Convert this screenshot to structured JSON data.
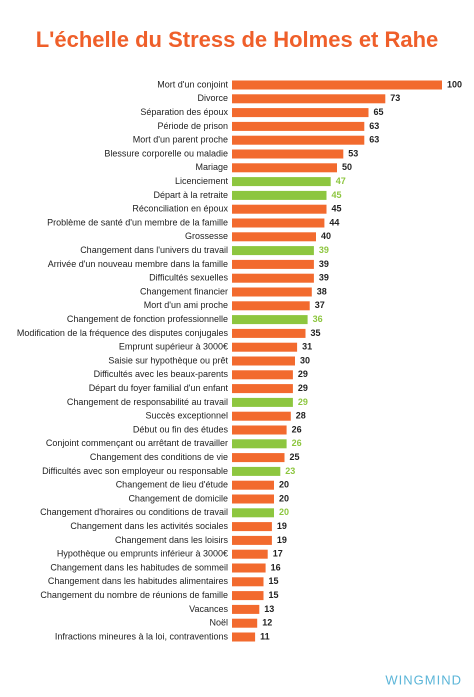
{
  "chart_data": {
    "type": "hbar",
    "title": "L'échelle du Stress de Holmes et Rahe",
    "categories": [
      "Mort d'un conjoint",
      "Divorce",
      "Séparation des époux",
      "Période de prison",
      "Mort d'un parent proche",
      "Blessure corporelle ou maladie",
      "Mariage",
      "Licenciement",
      "Départ à la retraite",
      "Réconciliation en époux",
      "Problème de santé d'un membre de la famille",
      "Grossesse",
      "Changement dans l'univers du travail",
      "Arrivée d'un nouveau membre dans la famille",
      "Difficultés sexuelles",
      "Changement financier",
      "Mort d'un ami proche",
      "Changement de fonction professionnelle",
      "Modification de la fréquence des disputes conjugales",
      "Emprunt supérieur à 3000€",
      "Saisie sur hypothèque ou prêt",
      "Difficultés avec les beaux-parents",
      "Départ du foyer familial d'un enfant",
      "Changement de responsabilité au travail",
      "Succès exceptionnel",
      "Début ou fin des études",
      "Conjoint commençant ou arrêtant de travailler",
      "Changement des conditions de vie",
      "Difficultés avec son employeur ou responsable",
      "Changement de lieu d'étude",
      "Changement de domicile",
      "Changement d'horaires ou conditions de travail",
      "Changement dans les activités sociales",
      "Changement dans les loisirs",
      "Hypothèque ou emprunts inférieur à 3000€",
      "Changement dans les habitudes de sommeil",
      "Changement dans les habitudes alimentaires",
      "Changement du nombre de réunions de famille",
      "Vacances",
      "Noël",
      "Infractions mineures à la loi, contraventions"
    ],
    "values": [
      100,
      73,
      65,
      63,
      63,
      53,
      50,
      47,
      45,
      45,
      44,
      40,
      39,
      39,
      39,
      38,
      37,
      36,
      35,
      31,
      30,
      29,
      29,
      29,
      28,
      26,
      26,
      25,
      23,
      20,
      20,
      20,
      19,
      19,
      17,
      16,
      15,
      15,
      13,
      12,
      11
    ],
    "colors": [
      "#f26a2e",
      "#f26a2e",
      "#f26a2e",
      "#f26a2e",
      "#f26a2e",
      "#f26a2e",
      "#f26a2e",
      "#8dc63f",
      "#8dc63f",
      "#f26a2e",
      "#f26a2e",
      "#f26a2e",
      "#8dc63f",
      "#f26a2e",
      "#f26a2e",
      "#f26a2e",
      "#f26a2e",
      "#8dc63f",
      "#f26a2e",
      "#f26a2e",
      "#f26a2e",
      "#f26a2e",
      "#f26a2e",
      "#8dc63f",
      "#f26a2e",
      "#f26a2e",
      "#8dc63f",
      "#f26a2e",
      "#8dc63f",
      "#f26a2e",
      "#f26a2e",
      "#8dc63f",
      "#f26a2e",
      "#f26a2e",
      "#f26a2e",
      "#f26a2e",
      "#f26a2e",
      "#f26a2e",
      "#f26a2e",
      "#f26a2e",
      "#f26a2e"
    ]
  },
  "footer": {
    "brand": "WINGMIND"
  }
}
